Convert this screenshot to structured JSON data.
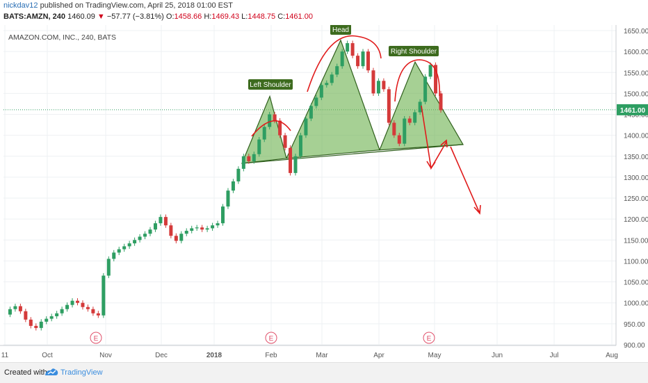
{
  "header": {
    "user": "nickdav12",
    "published": " published on TradingView.com, April 25, 2018 01:00 EST",
    "symbol": "BATS:AMZN, 240",
    "last": "1460.09",
    "change": "−57.77 (−3.81%)",
    "o_label": "O:",
    "o_value": "1458.66",
    "h_label": "H:",
    "h_value": "1469.43",
    "l_label": "L:",
    "l_value": "1448.75",
    "c_label": "C:",
    "c_value": "1461.00"
  },
  "chart_data": {
    "type": "candlestick",
    "title": "AMAZON.COM, INC., 240, BATS",
    "y_ticks": [
      900,
      950,
      1000,
      1050,
      1100,
      1150,
      1200,
      1250,
      1300,
      1350,
      1400,
      1450,
      1500,
      1550,
      1600,
      1650
    ],
    "ylim": [
      890,
      1660
    ],
    "x_ticks": [
      "11",
      "Oct",
      "Nov",
      "Dec",
      "2018",
      "Feb",
      "Mar",
      "Apr",
      "May",
      "Jun",
      "Jul",
      "Aug"
    ],
    "current_price": 1461.0,
    "current_price_label": "1461.00",
    "earnings_markers": [
      "E",
      "E",
      "E"
    ],
    "annotations": [
      "Left Shoulder",
      "Head",
      "Right Shoulder"
    ],
    "colors": {
      "up": "#2e9e62",
      "down": "#d43a3a",
      "annotation": "#e01b1b",
      "pattern_fill": "#6ab04c",
      "label_bg": "#3d6b1e"
    },
    "series_close": [
      972,
      985,
      992,
      980,
      960,
      945,
      940,
      955,
      962,
      968,
      975,
      985,
      995,
      1005,
      1000,
      990,
      985,
      975,
      970,
      1065,
      1105,
      1120,
      1128,
      1135,
      1142,
      1150,
      1158,
      1165,
      1175,
      1190,
      1205,
      1185,
      1160,
      1148,
      1165,
      1172,
      1178,
      1180,
      1175,
      1178,
      1185,
      1190,
      1230,
      1268,
      1290,
      1320,
      1350,
      1338,
      1355,
      1390,
      1420,
      1450,
      1435,
      1400,
      1370,
      1310,
      1350,
      1400,
      1440,
      1470,
      1490,
      1520,
      1525,
      1545,
      1565,
      1600,
      1620,
      1590,
      1565,
      1600,
      1555,
      1500,
      1530,
      1510,
      1430,
      1400,
      1380,
      1440,
      1430,
      1455,
      1480,
      1540,
      1568,
      1500,
      1460
    ]
  },
  "footer": {
    "created": "Created with",
    "brand": "TradingView"
  }
}
